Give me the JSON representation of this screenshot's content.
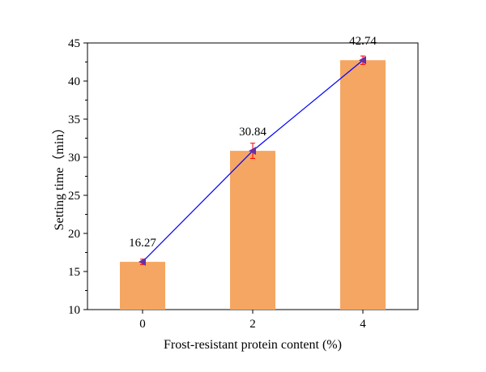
{
  "chart_data": {
    "type": "bar",
    "title": "",
    "xlabel": "Frost-resistant protein content (%)",
    "ylabel": "Setting time（min）",
    "categories": [
      "0",
      "2",
      "4"
    ],
    "values": [
      16.27,
      30.84,
      42.74
    ],
    "error": [
      0.35,
      1.0,
      0.55
    ],
    "data_labels": [
      "16.27",
      "30.84",
      "42.74"
    ],
    "ylim": [
      10,
      45
    ],
    "yticks": [
      "10",
      "15",
      "20",
      "25",
      "30",
      "35",
      "40",
      "45"
    ],
    "grid": false,
    "legend": "none",
    "overlay_line": {
      "type": "line",
      "marker": "left-triangle"
    },
    "colors": {
      "bar": "#F5A662",
      "line": "#0000FF",
      "marker": "#6A2FA8",
      "error_bar": "#FF0000",
      "axis": "#000000"
    }
  }
}
